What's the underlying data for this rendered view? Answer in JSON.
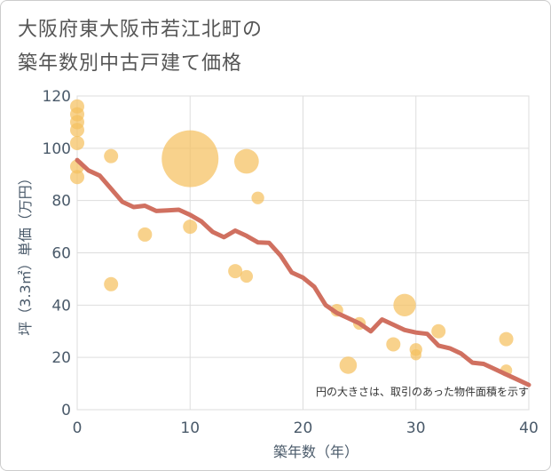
{
  "chart_data": {
    "type": "scatter",
    "title_lines": [
      "大阪府東大阪市若江北町の",
      "築年数別中古戸建て価格"
    ],
    "xlabel": "築年数（年）",
    "ylabel": "坪（3.3㎡）単価（万円）",
    "xlim": [
      0,
      40
    ],
    "ylim": [
      0,
      120
    ],
    "xticks": [
      0,
      10,
      20,
      30,
      40
    ],
    "yticks": [
      0,
      20,
      40,
      60,
      80,
      100,
      120
    ],
    "note": "円の大きさは、取引のあった物件面積を示す",
    "colors": {
      "bubble": "#f5c060",
      "line": "#d07060",
      "axis_text": "#4a5a6a",
      "grid": "#dddddd"
    },
    "bubbles": [
      {
        "x": 0,
        "y": 116,
        "size": 1
      },
      {
        "x": 0,
        "y": 113,
        "size": 1
      },
      {
        "x": 0,
        "y": 110,
        "size": 1
      },
      {
        "x": 0,
        "y": 107,
        "size": 1
      },
      {
        "x": 0,
        "y": 102,
        "size": 1
      },
      {
        "x": 0,
        "y": 93,
        "size": 1
      },
      {
        "x": 0,
        "y": 89,
        "size": 1
      },
      {
        "x": 3,
        "y": 97,
        "size": 1
      },
      {
        "x": 3,
        "y": 48,
        "size": 1
      },
      {
        "x": 6,
        "y": 67,
        "size": 1
      },
      {
        "x": 10,
        "y": 96,
        "size": 16
      },
      {
        "x": 10,
        "y": 70,
        "size": 1
      },
      {
        "x": 14,
        "y": 53,
        "size": 1
      },
      {
        "x": 15,
        "y": 95,
        "size": 3
      },
      {
        "x": 15,
        "y": 51,
        "size": 0.8
      },
      {
        "x": 16,
        "y": 81,
        "size": 0.8
      },
      {
        "x": 23,
        "y": 38,
        "size": 0.8
      },
      {
        "x": 24,
        "y": 17,
        "size": 1.5
      },
      {
        "x": 25,
        "y": 33,
        "size": 0.8
      },
      {
        "x": 28,
        "y": 25,
        "size": 1
      },
      {
        "x": 29,
        "y": 40,
        "size": 2.5
      },
      {
        "x": 30,
        "y": 23,
        "size": 0.8
      },
      {
        "x": 30,
        "y": 21,
        "size": 0.6
      },
      {
        "x": 32,
        "y": 30,
        "size": 1
      },
      {
        "x": 38,
        "y": 27,
        "size": 1
      },
      {
        "x": 38,
        "y": 15,
        "size": 0.7
      }
    ],
    "trend_line": {
      "x": [
        0,
        1,
        2,
        3,
        4,
        5,
        6,
        7,
        8,
        9,
        10,
        11,
        12,
        13,
        14,
        15,
        16,
        17,
        18,
        19,
        20,
        21,
        22,
        23,
        24,
        25,
        26,
        27,
        28,
        29,
        30,
        31,
        32,
        33,
        34,
        35,
        36,
        37,
        38,
        39,
        40
      ],
      "y": [
        95.5,
        91.5,
        89.5,
        84.5,
        79.5,
        77.5,
        78,
        76,
        76.2,
        76.5,
        74.5,
        72,
        68,
        66,
        68.5,
        66.5,
        64,
        63.8,
        59,
        52.5,
        50.5,
        47,
        40,
        37,
        35,
        33,
        30,
        34.5,
        32.5,
        30.5,
        29.5,
        29,
        24.5,
        23.5,
        21.5,
        18,
        17.5,
        15.5,
        13.5,
        11.5,
        9.5
      ]
    }
  }
}
